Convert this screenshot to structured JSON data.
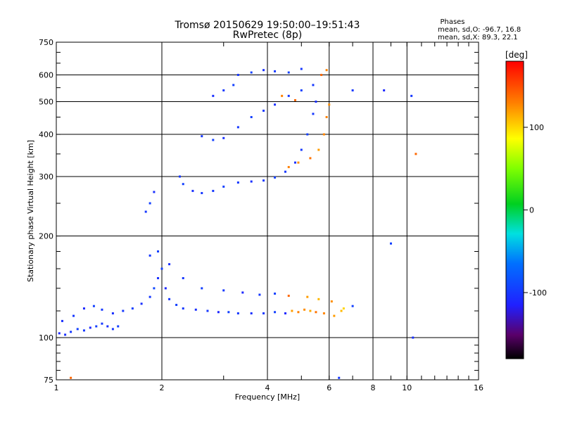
{
  "chart_data": {
    "type": "scatter",
    "title": "Tromsø 20150629 19:50:00–19:51:43",
    "subtitle": "RwPretec (8p)",
    "xlabel": "Frequency [MHz]",
    "ylabel": "Stationary phase Virtual Height [km]",
    "x_scale": "log",
    "y_scale": "log",
    "xlim": [
      1,
      16
    ],
    "ylim": [
      75,
      750
    ],
    "x_ticks": [
      1,
      2,
      4,
      6,
      8,
      10,
      16
    ],
    "x_tick_labels": [
      "1",
      "2",
      "4",
      "6",
      "8",
      "10",
      "16"
    ],
    "y_ticks": [
      75,
      100,
      200,
      300,
      400,
      500,
      600,
      750
    ],
    "y_tick_labels": [
      "75",
      "100",
      "200",
      "300",
      "400",
      "500",
      "600",
      "750"
    ],
    "x_grid": [
      2,
      4,
      6,
      8,
      10
    ],
    "y_grid": [
      100,
      200,
      300,
      400,
      500,
      600
    ],
    "stats": {
      "heading": "Phases",
      "line1": "mean, sd,O:  -96.7, 16.8",
      "line2": "mean, sd,X:  89.3, 22.1"
    },
    "colorbar": {
      "label": "[deg]",
      "ticks": [
        "100",
        "0",
        "-100"
      ],
      "tick_values": [
        100,
        0,
        -100
      ],
      "range": [
        -180,
        180
      ]
    },
    "series": [
      {
        "points": [
          [
            1.02,
            103,
            -110
          ],
          [
            1.06,
            102,
            -105
          ],
          [
            1.1,
            104,
            -100
          ],
          [
            1.15,
            106,
            -95
          ],
          [
            1.2,
            105,
            -100
          ],
          [
            1.25,
            107,
            -110
          ],
          [
            1.3,
            108,
            -95
          ],
          [
            1.35,
            110,
            -100
          ],
          [
            1.4,
            108,
            -105
          ],
          [
            1.45,
            106,
            -100
          ],
          [
            1.5,
            108,
            -95
          ],
          [
            1.04,
            112,
            -105
          ],
          [
            1.12,
            116,
            -100
          ],
          [
            1.2,
            122,
            -110
          ],
          [
            1.28,
            124,
            -95
          ],
          [
            1.35,
            121,
            -100
          ],
          [
            1.45,
            118,
            -105
          ],
          [
            1.55,
            120,
            -100
          ],
          [
            1.65,
            122,
            -95
          ],
          [
            1.75,
            126,
            -105
          ],
          [
            1.85,
            132,
            -100
          ],
          [
            1.9,
            140,
            -90
          ],
          [
            1.95,
            150,
            -105
          ],
          [
            2.0,
            160,
            -95
          ],
          [
            2.05,
            140,
            -110
          ],
          [
            2.1,
            130,
            -100
          ],
          [
            2.2,
            125,
            -95
          ],
          [
            2.3,
            122,
            -100
          ],
          [
            2.5,
            121,
            -105
          ],
          [
            2.7,
            120,
            -100
          ],
          [
            2.9,
            119,
            -110
          ],
          [
            3.1,
            119,
            -95
          ],
          [
            3.3,
            118,
            -100
          ],
          [
            3.6,
            118,
            -105
          ],
          [
            3.9,
            118,
            -100
          ],
          [
            4.2,
            119,
            -95
          ],
          [
            4.5,
            118,
            -110
          ],
          [
            4.7,
            120,
            120
          ],
          [
            4.9,
            119,
            130
          ],
          [
            5.1,
            121,
            125
          ],
          [
            5.3,
            120,
            115
          ],
          [
            5.5,
            119,
            135
          ],
          [
            5.8,
            118,
            128
          ],
          [
            6.2,
            116,
            120
          ],
          [
            6.5,
            120,
            110
          ],
          [
            1.85,
            175,
            -100
          ],
          [
            1.95,
            180,
            -95
          ],
          [
            2.1,
            165,
            -105
          ],
          [
            2.3,
            150,
            -100
          ],
          [
            2.6,
            140,
            -95
          ],
          [
            3.0,
            138,
            -100
          ],
          [
            3.4,
            136,
            -110
          ],
          [
            3.8,
            134,
            -100
          ],
          [
            4.2,
            135,
            -95
          ],
          [
            4.6,
            133,
            140
          ],
          [
            5.2,
            132,
            120
          ],
          [
            5.6,
            130,
            110
          ],
          [
            6.1,
            128,
            125
          ],
          [
            6.6,
            122,
            100
          ],
          [
            7.0,
            124,
            -95
          ],
          [
            1.8,
            236,
            -100
          ],
          [
            1.85,
            250,
            -95
          ],
          [
            1.9,
            270,
            -105
          ],
          [
            2.25,
            300,
            -100
          ],
          [
            2.3,
            285,
            -95
          ],
          [
            2.45,
            272,
            -105
          ],
          [
            2.6,
            268,
            -100
          ],
          [
            2.8,
            272,
            -100
          ],
          [
            3.0,
            280,
            -95
          ],
          [
            3.3,
            288,
            -100
          ],
          [
            3.6,
            290,
            -105
          ],
          [
            3.9,
            292,
            -100
          ],
          [
            4.2,
            298,
            -95
          ],
          [
            4.5,
            310,
            -100
          ],
          [
            4.8,
            330,
            -105
          ],
          [
            5.0,
            360,
            -100
          ],
          [
            5.2,
            400,
            -95
          ],
          [
            5.4,
            460,
            -100
          ],
          [
            5.5,
            500,
            -105
          ],
          [
            4.6,
            320,
            130
          ],
          [
            4.9,
            330,
            125
          ],
          [
            5.3,
            340,
            135
          ],
          [
            5.6,
            360,
            120
          ],
          [
            5.8,
            400,
            128
          ],
          [
            5.9,
            450,
            130
          ],
          [
            6.0,
            490,
            125
          ],
          [
            2.6,
            395,
            -100
          ],
          [
            2.8,
            385,
            -95
          ],
          [
            3.0,
            390,
            -105
          ],
          [
            3.3,
            420,
            -100
          ],
          [
            3.6,
            450,
            -95
          ],
          [
            3.9,
            470,
            -100
          ],
          [
            4.2,
            490,
            -105
          ],
          [
            4.6,
            520,
            -100
          ],
          [
            5.0,
            540,
            -95
          ],
          [
            5.4,
            560,
            -100
          ],
          [
            5.7,
            600,
            140
          ],
          [
            5.9,
            620,
            130
          ],
          [
            3.3,
            600,
            -100
          ],
          [
            3.6,
            610,
            -95
          ],
          [
            3.9,
            620,
            -105
          ],
          [
            4.2,
            615,
            -100
          ],
          [
            4.6,
            610,
            -95
          ],
          [
            5.0,
            625,
            -100
          ],
          [
            2.8,
            520,
            -105
          ],
          [
            3.0,
            540,
            -100
          ],
          [
            3.2,
            560,
            -95
          ],
          [
            4.4,
            520,
            130
          ],
          [
            4.8,
            505,
            140
          ],
          [
            7.0,
            540,
            -100
          ],
          [
            8.6,
            540,
            -110
          ],
          [
            10.3,
            520,
            -100
          ],
          [
            10.6,
            350,
            140
          ],
          [
            9.0,
            190,
            -95
          ],
          [
            6.4,
            76,
            -100
          ],
          [
            1.1,
            76,
            140
          ],
          [
            10.4,
            100,
            -105
          ]
        ]
      }
    ]
  }
}
